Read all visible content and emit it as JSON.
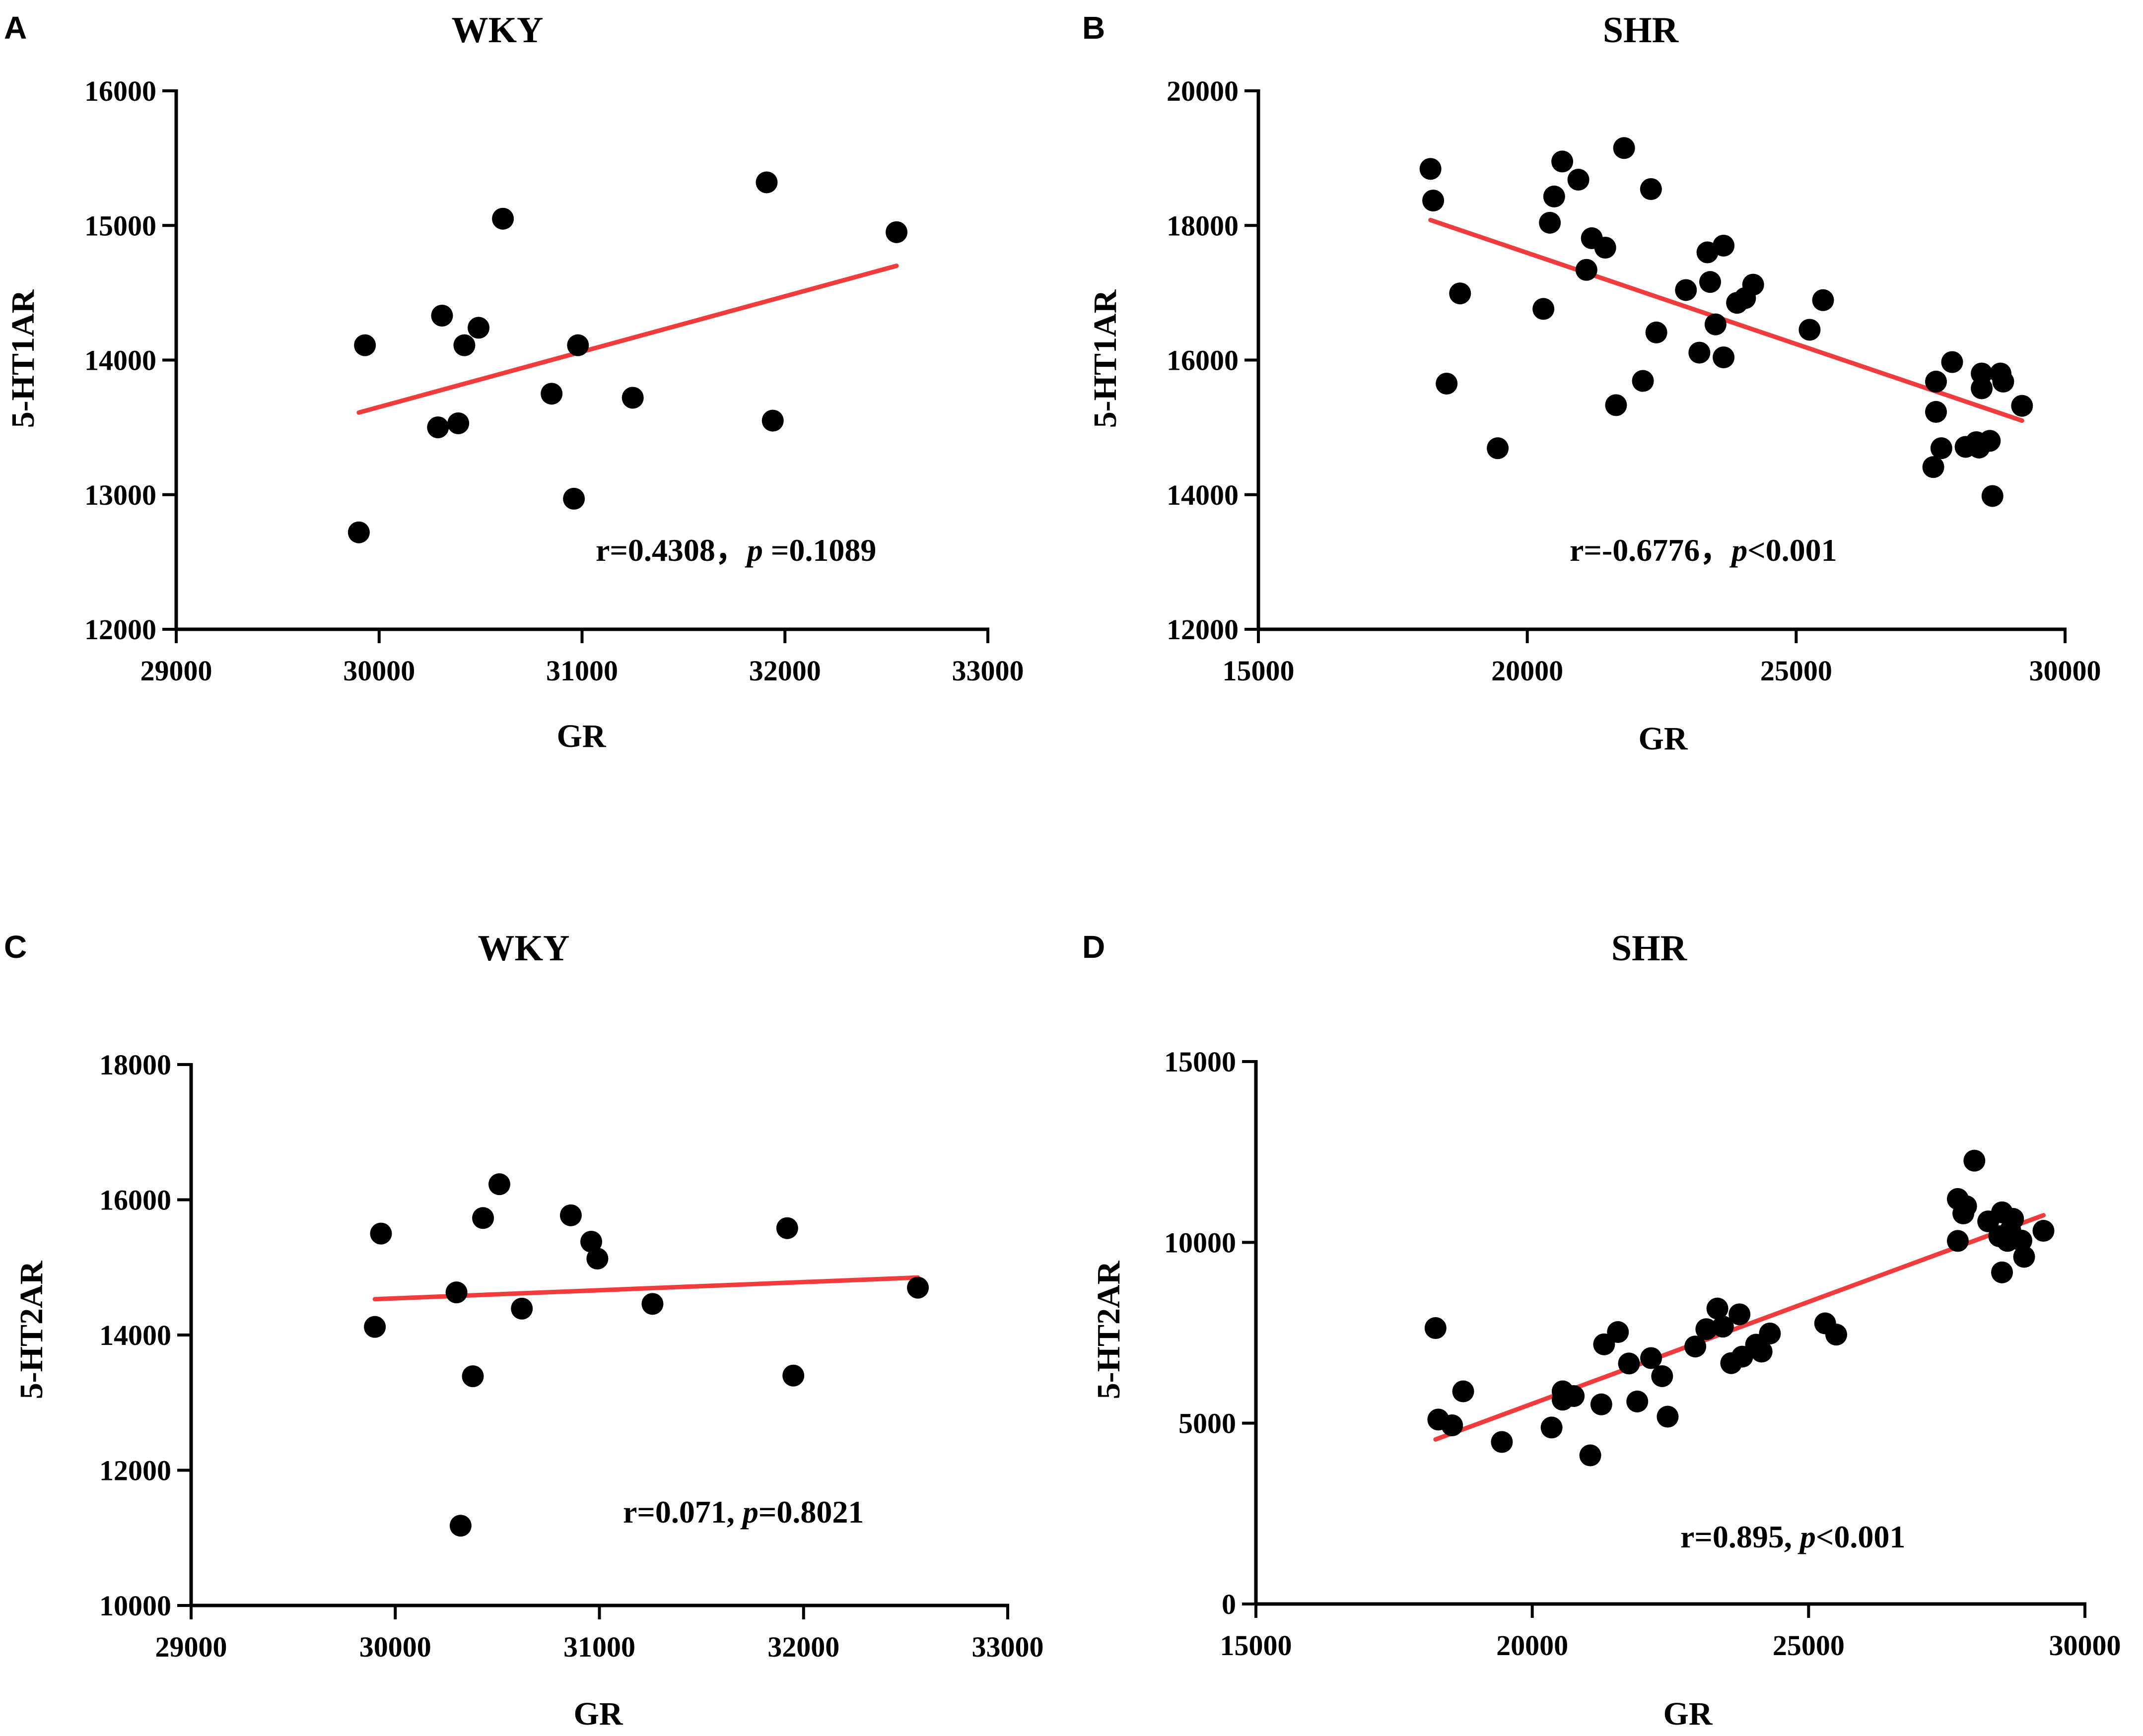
{
  "chart_data": [
    {
      "panel": "A",
      "type": "scatter",
      "title": "WKY",
      "xlabel": "GR",
      "ylabel": "5-HT1AR",
      "xlim": [
        29000,
        33000
      ],
      "ylim": [
        12000,
        16000
      ],
      "xticks": [
        29000,
        30000,
        31000,
        32000,
        33000
      ],
      "yticks": [
        12000,
        13000,
        14000,
        15000,
        16000
      ],
      "xticklabels": [
        "29000",
        "30000",
        "31000",
        "32000",
        "33000"
      ],
      "yticklabels": [
        "12000",
        "13000",
        "14000",
        "15000",
        "16000"
      ],
      "points": [
        [
          29900,
          12720
        ],
        [
          29930,
          14110
        ],
        [
          30290,
          13500
        ],
        [
          30310,
          14330
        ],
        [
          30390,
          13530
        ],
        [
          30420,
          14110
        ],
        [
          30490,
          14240
        ],
        [
          30610,
          15050
        ],
        [
          30850,
          13750
        ],
        [
          30960,
          12970
        ],
        [
          30980,
          14110
        ],
        [
          31250,
          13720
        ],
        [
          31910,
          15320
        ],
        [
          31940,
          13550
        ],
        [
          32550,
          14950
        ]
      ],
      "fit": [
        [
          29900,
          13610
        ],
        [
          32550,
          14700
        ]
      ],
      "stat_r": "r=0.4308，",
      "stat_p_symbol": "p",
      "stat_p": " =0.1089"
    },
    {
      "panel": "B",
      "type": "scatter",
      "title": "SHR",
      "xlabel": "GR",
      "ylabel": "5-HT1AR",
      "xlim": [
        15000,
        30000
      ],
      "ylim": [
        12000,
        20000
      ],
      "xticks": [
        15000,
        20000,
        25000,
        30000
      ],
      "yticks": [
        12000,
        14000,
        16000,
        18000,
        20000
      ],
      "xticklabels": [
        "15000",
        "20000",
        "25000",
        "30000"
      ],
      "yticklabels": [
        "12000",
        "14000",
        "16000",
        "18000",
        "20000"
      ],
      "points": [
        [
          18200,
          18840
        ],
        [
          18250,
          18370
        ],
        [
          18500,
          15650
        ],
        [
          18750,
          16990
        ],
        [
          19450,
          14690
        ],
        [
          20300,
          16760
        ],
        [
          20420,
          18040
        ],
        [
          20500,
          18430
        ],
        [
          20650,
          18950
        ],
        [
          20950,
          18680
        ],
        [
          21100,
          17340
        ],
        [
          21200,
          17810
        ],
        [
          21450,
          17670
        ],
        [
          21650,
          15330
        ],
        [
          21800,
          19150
        ],
        [
          22150,
          15690
        ],
        [
          22300,
          18540
        ],
        [
          22400,
          16410
        ],
        [
          22950,
          17040
        ],
        [
          23200,
          16110
        ],
        [
          23350,
          17600
        ],
        [
          23400,
          17160
        ],
        [
          23500,
          16530
        ],
        [
          23650,
          17700
        ],
        [
          23650,
          16040
        ],
        [
          23900,
          16850
        ],
        [
          24050,
          16920
        ],
        [
          24200,
          17120
        ],
        [
          25250,
          16450
        ],
        [
          25500,
          16890
        ],
        [
          27550,
          14410
        ],
        [
          27600,
          15680
        ],
        [
          27600,
          15230
        ],
        [
          27700,
          14690
        ],
        [
          27900,
          15970
        ],
        [
          28150,
          14710
        ],
        [
          28350,
          14780
        ],
        [
          28400,
          14700
        ],
        [
          28450,
          15580
        ],
        [
          28450,
          15800
        ],
        [
          28600,
          14800
        ],
        [
          28650,
          13980
        ],
        [
          28800,
          15800
        ],
        [
          28850,
          15680
        ],
        [
          29200,
          15320
        ]
      ],
      "fit": [
        [
          18200,
          18080
        ],
        [
          29200,
          15100
        ]
      ],
      "stat_r": "r=-0.6776，",
      "stat_p_symbol": "p",
      "stat_p": "<0.001"
    },
    {
      "panel": "C",
      "type": "scatter",
      "title": "WKY",
      "xlabel": "GR",
      "ylabel": "5-HT2AR",
      "xlim": [
        29000,
        33000
      ],
      "ylim": [
        10000,
        18000
      ],
      "xticks": [
        29000,
        30000,
        31000,
        32000,
        33000
      ],
      "yticks": [
        10000,
        12000,
        14000,
        16000,
        18000
      ],
      "xticklabels": [
        "29000",
        "30000",
        "31000",
        "32000",
        "33000"
      ],
      "yticklabels": [
        "10000",
        "12000",
        "14000",
        "16000",
        "18000"
      ],
      "points": [
        [
          29900,
          14120
        ],
        [
          29930,
          15500
        ],
        [
          30300,
          14630
        ],
        [
          30320,
          11180
        ],
        [
          30380,
          13390
        ],
        [
          30430,
          15730
        ],
        [
          30510,
          16230
        ],
        [
          30620,
          14390
        ],
        [
          30860,
          15770
        ],
        [
          30960,
          15380
        ],
        [
          30990,
          15130
        ],
        [
          31260,
          14460
        ],
        [
          31920,
          15580
        ],
        [
          31950,
          13400
        ],
        [
          32560,
          14700
        ]
      ],
      "fit": [
        [
          29900,
          14530
        ],
        [
          32560,
          14850
        ]
      ],
      "stat_r": "r=0.071, ",
      "stat_p_symbol": "p",
      "stat_p": "=0.8021"
    },
    {
      "panel": "D",
      "type": "scatter",
      "title": "SHR",
      "xlabel": "GR",
      "ylabel": "5-HT2AR",
      "xlim": [
        15000,
        30000
      ],
      "ylim": [
        0,
        15000
      ],
      "xticks": [
        15000,
        20000,
        25000,
        30000
      ],
      "yticks": [
        0,
        5000,
        10000,
        15000
      ],
      "xticklabels": [
        "15000",
        "20000",
        "25000",
        "30000"
      ],
      "yticklabels": [
        "0",
        "5000",
        "10000",
        "15000"
      ],
      "points": [
        [
          18250,
          7630
        ],
        [
          18300,
          5100
        ],
        [
          18550,
          4940
        ],
        [
          18750,
          5880
        ],
        [
          19450,
          4480
        ],
        [
          20350,
          4880
        ],
        [
          20550,
          5650
        ],
        [
          20550,
          5880
        ],
        [
          20750,
          5750
        ],
        [
          21050,
          4110
        ],
        [
          21250,
          5520
        ],
        [
          21300,
          7180
        ],
        [
          21550,
          7520
        ],
        [
          21750,
          6650
        ],
        [
          21900,
          5600
        ],
        [
          22150,
          6800
        ],
        [
          22350,
          6300
        ],
        [
          22450,
          5180
        ],
        [
          22950,
          7120
        ],
        [
          23150,
          7600
        ],
        [
          23350,
          8170
        ],
        [
          23450,
          7670
        ],
        [
          23600,
          6660
        ],
        [
          23750,
          8010
        ],
        [
          23800,
          6840
        ],
        [
          24050,
          7170
        ],
        [
          24150,
          6980
        ],
        [
          24300,
          7480
        ],
        [
          25300,
          7760
        ],
        [
          25500,
          7450
        ],
        [
          27700,
          10040
        ],
        [
          27700,
          11200
        ],
        [
          27800,
          10800
        ],
        [
          27850,
          11000
        ],
        [
          28000,
          12260
        ],
        [
          28250,
          10580
        ],
        [
          28450,
          10170
        ],
        [
          28500,
          10830
        ],
        [
          28500,
          9170
        ],
        [
          28600,
          10040
        ],
        [
          28650,
          10330
        ],
        [
          28700,
          10650
        ],
        [
          28850,
          10050
        ],
        [
          28900,
          9600
        ],
        [
          29250,
          10320
        ]
      ],
      "fit": [
        [
          18250,
          4550
        ],
        [
          29250,
          10750
        ]
      ],
      "stat_r": "r=0.895, ",
      "stat_p_symbol": "p",
      "stat_p": "<0.001"
    }
  ]
}
